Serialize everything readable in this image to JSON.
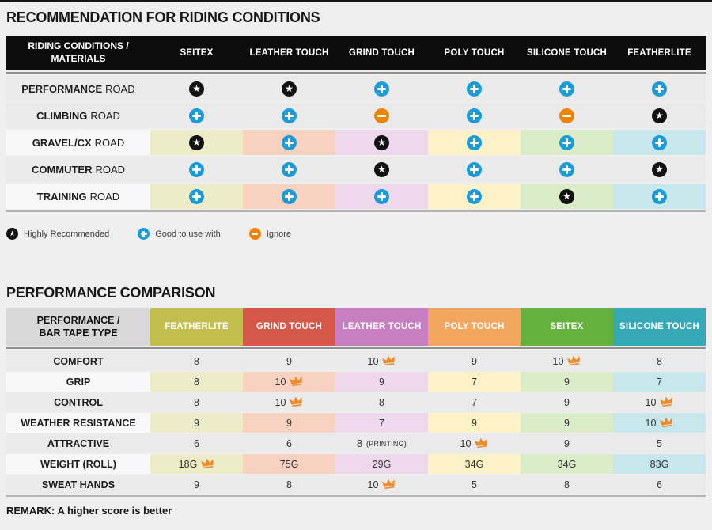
{
  "icons": {
    "star_color": "#121212",
    "plus_color": "#1b9cd8",
    "minus_color": "#ef8300",
    "crown_color": "#ee8b2b"
  },
  "riding_table": {
    "title": "RECOMMENDATION FOR RIDING CONDITIONS",
    "header_line1": "RIDING CONDITIONS /",
    "header_line2": "MATERIALS",
    "columns": [
      "SEITEX",
      "LEATHER TOUCH",
      "GRIND TOUCH",
      "POLY TOUCH",
      "SILICONE TOUCH",
      "FEATHERLITE"
    ],
    "tint_colors": [
      "#edebc8",
      "#f7d2c1",
      "#eed8eb",
      "#fdf1c8",
      "#dbedc8",
      "#c7e7ec"
    ],
    "rows": [
      {
        "label_bold": "PERFORMANCE",
        "label_rest": "ROAD",
        "tinted": false,
        "cells": [
          "star",
          "star",
          "plus",
          "plus",
          "plus",
          "plus"
        ]
      },
      {
        "label_bold": "CLIMBING",
        "label_rest": "ROAD",
        "tinted": false,
        "cells": [
          "plus",
          "plus",
          "minus",
          "plus",
          "minus",
          "star"
        ]
      },
      {
        "label_bold": "GRAVEL/CX",
        "label_rest": "ROAD",
        "tinted": true,
        "cells": [
          "star",
          "plus",
          "star",
          "plus",
          "plus",
          "plus"
        ]
      },
      {
        "label_bold": "COMMUTER",
        "label_rest": "ROAD",
        "tinted": false,
        "cells": [
          "plus",
          "plus",
          "star",
          "plus",
          "plus",
          "star"
        ]
      },
      {
        "label_bold": "TRAINING",
        "label_rest": "ROAD",
        "tinted": true,
        "cells": [
          "plus",
          "plus",
          "plus",
          "plus",
          "star",
          "plus"
        ]
      }
    ]
  },
  "legend": {
    "items": [
      {
        "icon": "star",
        "label": "Highly Recommended"
      },
      {
        "icon": "plus",
        "label": "Good to use with"
      },
      {
        "icon": "minus",
        "label": "Ignore"
      }
    ]
  },
  "performance_table": {
    "title": "PERFORMANCE COMPARISON",
    "header_line1": "PERFORMANCE /",
    "header_line2": "BAR TAPE TYPE",
    "columns": [
      {
        "name": "FEATHERLITE",
        "color": "#c4be4e",
        "tint": "#edebc8"
      },
      {
        "name": "GRIND TOUCH",
        "color": "#d6584b",
        "tint": "#f7d2c1"
      },
      {
        "name": "LEATHER TOUCH",
        "color": "#c77fc1",
        "tint": "#eed8eb"
      },
      {
        "name": "POLY TOUCH",
        "color": "#f3a660",
        "tint": "#fdf1c8"
      },
      {
        "name": "SEITEX",
        "color": "#64b23d",
        "tint": "#dbedc8"
      },
      {
        "name": "SILICONE TOUCH",
        "color": "#35aab6",
        "tint": "#c7e7ec"
      }
    ],
    "rows": [
      {
        "label": "COMFORT",
        "tinted": false,
        "cells": [
          {
            "v": "8"
          },
          {
            "v": "9"
          },
          {
            "v": "10",
            "crown": true
          },
          {
            "v": "9"
          },
          {
            "v": "10",
            "crown": true
          },
          {
            "v": "8"
          }
        ]
      },
      {
        "label": "GRIP",
        "tinted": true,
        "cells": [
          {
            "v": "8"
          },
          {
            "v": "10",
            "crown": true
          },
          {
            "v": "9"
          },
          {
            "v": "7"
          },
          {
            "v": "9"
          },
          {
            "v": "7"
          }
        ]
      },
      {
        "label": "CONTROL",
        "tinted": false,
        "cells": [
          {
            "v": "8"
          },
          {
            "v": "10",
            "crown": true
          },
          {
            "v": "8"
          },
          {
            "v": "7"
          },
          {
            "v": "9"
          },
          {
            "v": "10",
            "crown": true
          }
        ]
      },
      {
        "label": "WEATHER RESISTANCE",
        "tinted": true,
        "cells": [
          {
            "v": "9"
          },
          {
            "v": "9"
          },
          {
            "v": "7"
          },
          {
            "v": "9"
          },
          {
            "v": "9"
          },
          {
            "v": "10",
            "crown": true
          }
        ]
      },
      {
        "label": "ATTRACTIVE",
        "tinted": false,
        "cells": [
          {
            "v": "6"
          },
          {
            "v": "6"
          },
          {
            "v": "8",
            "suffix": "(PRINTING)"
          },
          {
            "v": "10",
            "crown": true
          },
          {
            "v": "9"
          },
          {
            "v": "5"
          }
        ]
      },
      {
        "label": "WEIGHT (ROLL)",
        "tinted": true,
        "cells": [
          {
            "v": "18G",
            "crown": true
          },
          {
            "v": "75G"
          },
          {
            "v": "29G"
          },
          {
            "v": "34G"
          },
          {
            "v": "34G"
          },
          {
            "v": "83G"
          }
        ]
      },
      {
        "label": "SWEAT HANDS",
        "tinted": false,
        "cells": [
          {
            "v": "9"
          },
          {
            "v": "8"
          },
          {
            "v": "10",
            "crown": true
          },
          {
            "v": "5"
          },
          {
            "v": "8"
          },
          {
            "v": "6"
          }
        ]
      }
    ],
    "remark": "REMARK: A higher score is better"
  },
  "chart_data": [
    {
      "type": "table",
      "title": "RECOMMENDATION FOR RIDING CONDITIONS",
      "row_header": "RIDING CONDITIONS / MATERIALS",
      "columns": [
        "SEITEX",
        "LEATHER TOUCH",
        "GRIND TOUCH",
        "POLY TOUCH",
        "SILICONE TOUCH",
        "FEATHERLITE"
      ],
      "rows": [
        "PERFORMANCE ROAD",
        "CLIMBING ROAD",
        "GRAVEL/CX ROAD",
        "COMMUTER ROAD",
        "TRAINING ROAD"
      ],
      "values": [
        [
          "Highly Recommended",
          "Highly Recommended",
          "Good to use with",
          "Good to use with",
          "Good to use with",
          "Good to use with"
        ],
        [
          "Good to use with",
          "Good to use with",
          "Ignore",
          "Good to use with",
          "Ignore",
          "Highly Recommended"
        ],
        [
          "Highly Recommended",
          "Good to use with",
          "Highly Recommended",
          "Good to use with",
          "Good to use with",
          "Good to use with"
        ],
        [
          "Good to use with",
          "Good to use with",
          "Highly Recommended",
          "Good to use with",
          "Good to use with",
          "Highly Recommended"
        ],
        [
          "Good to use with",
          "Good to use with",
          "Good to use with",
          "Good to use with",
          "Highly Recommended",
          "Good to use with"
        ]
      ],
      "legend": [
        "Highly Recommended",
        "Good to use with",
        "Ignore"
      ]
    },
    {
      "type": "table",
      "title": "PERFORMANCE COMPARISON",
      "row_header": "PERFORMANCE / BAR TAPE TYPE",
      "columns": [
        "FEATHERLITE",
        "GRIND TOUCH",
        "LEATHER TOUCH",
        "POLY TOUCH",
        "SEITEX",
        "SILICONE TOUCH"
      ],
      "rows": [
        "COMFORT",
        "GRIP",
        "CONTROL",
        "WEATHER RESISTANCE",
        "ATTRACTIVE",
        "WEIGHT (ROLL)",
        "SWEAT HANDS"
      ],
      "values": [
        [
          "8",
          "9",
          "10 (best)",
          "9",
          "10 (best)",
          "8"
        ],
        [
          "8",
          "10 (best)",
          "9",
          "7",
          "9",
          "7"
        ],
        [
          "8",
          "10 (best)",
          "8",
          "7",
          "9",
          "10 (best)"
        ],
        [
          "9",
          "9",
          "7",
          "9",
          "9",
          "10 (best)"
        ],
        [
          "6",
          "6",
          "8 (PRINTING)",
          "10 (best)",
          "9",
          "5"
        ],
        [
          "18G (best)",
          "75G",
          "29G",
          "34G",
          "34G",
          "83G"
        ],
        [
          "9",
          "8",
          "10 (best)",
          "5",
          "8",
          "6"
        ]
      ],
      "remark": "REMARK: A higher score is better"
    }
  ]
}
